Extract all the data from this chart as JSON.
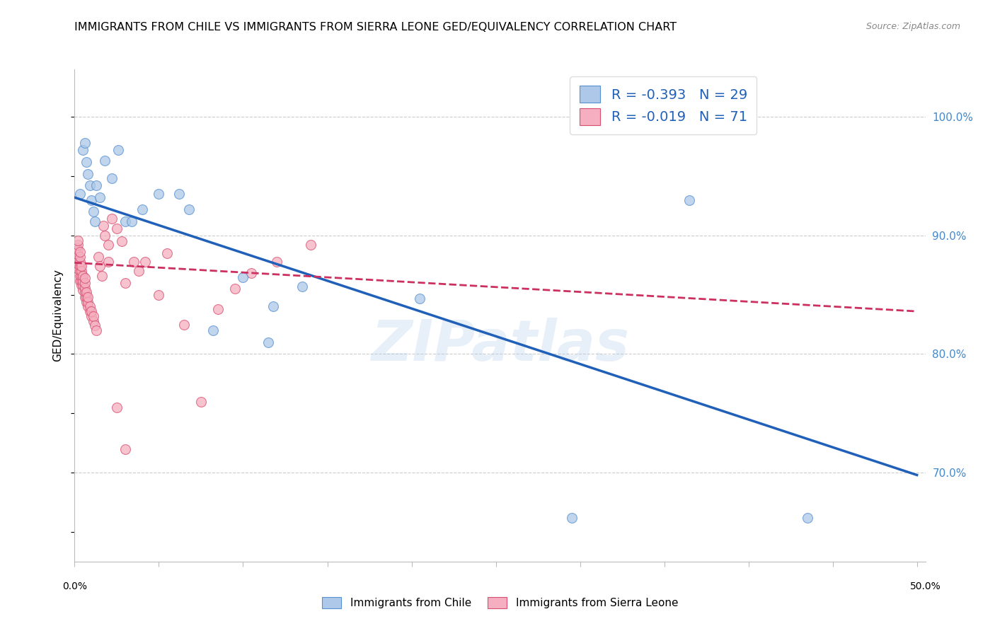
{
  "title": "IMMIGRANTS FROM CHILE VS IMMIGRANTS FROM SIERRA LEONE GED/EQUIVALENCY CORRELATION CHART",
  "source": "Source: ZipAtlas.com",
  "ylabel": "GED/Equivalency",
  "ytick_values": [
    0.7,
    0.8,
    0.9,
    1.0
  ],
  "xlim": [
    0.0,
    0.505
  ],
  "ylim": [
    0.625,
    1.04
  ],
  "chile_R": "-0.393",
  "chile_N": "29",
  "sierra_leone_R": "-0.019",
  "sierra_leone_N": "71",
  "chile_color": "#adc8e8",
  "sierra_leone_color": "#f5afc0",
  "chile_edge_color": "#5590d0",
  "sierra_leone_edge_color": "#d85070",
  "chile_line_color": "#2060b8",
  "sierra_leone_line_color": "#cc3060",
  "background_color": "#ffffff",
  "grid_color": "#cccccc",
  "title_fontsize": 11.5,
  "right_axis_color": "#4488cc",
  "legend_text_color": "#2060b8",
  "chile_scatter_x": [
    0.003,
    0.005,
    0.006,
    0.007,
    0.008,
    0.009,
    0.01,
    0.011,
    0.012,
    0.013,
    0.015,
    0.018,
    0.022,
    0.026,
    0.03,
    0.034,
    0.04,
    0.05,
    0.062,
    0.068,
    0.082,
    0.1,
    0.118,
    0.135,
    0.205,
    0.115,
    0.295,
    0.365,
    0.435
  ],
  "chile_scatter_y": [
    0.935,
    0.972,
    0.978,
    0.962,
    0.952,
    0.942,
    0.93,
    0.92,
    0.912,
    0.942,
    0.932,
    0.963,
    0.948,
    0.972,
    0.912,
    0.912,
    0.922,
    0.935,
    0.935,
    0.922,
    0.82,
    0.865,
    0.84,
    0.857,
    0.847,
    0.81,
    0.662,
    0.93,
    0.662
  ],
  "sl_scatter_x": [
    0.001,
    0.001,
    0.001,
    0.001,
    0.002,
    0.002,
    0.002,
    0.002,
    0.002,
    0.002,
    0.002,
    0.003,
    0.003,
    0.003,
    0.003,
    0.003,
    0.003,
    0.003,
    0.004,
    0.004,
    0.004,
    0.004,
    0.004,
    0.005,
    0.005,
    0.005,
    0.005,
    0.006,
    0.006,
    0.006,
    0.006,
    0.006,
    0.007,
    0.007,
    0.007,
    0.008,
    0.008,
    0.008,
    0.009,
    0.009,
    0.01,
    0.01,
    0.011,
    0.011,
    0.012,
    0.013,
    0.014,
    0.015,
    0.016,
    0.017,
    0.018,
    0.02,
    0.02,
    0.022,
    0.025,
    0.028,
    0.03,
    0.035,
    0.038,
    0.042,
    0.05,
    0.055,
    0.065,
    0.075,
    0.085,
    0.095,
    0.105,
    0.12,
    0.14,
    0.025,
    0.03
  ],
  "sl_scatter_y": [
    0.878,
    0.882,
    0.886,
    0.89,
    0.872,
    0.876,
    0.88,
    0.884,
    0.888,
    0.892,
    0.896,
    0.862,
    0.866,
    0.87,
    0.874,
    0.878,
    0.882,
    0.886,
    0.858,
    0.862,
    0.866,
    0.87,
    0.874,
    0.854,
    0.858,
    0.862,
    0.866,
    0.848,
    0.852,
    0.856,
    0.86,
    0.864,
    0.844,
    0.848,
    0.852,
    0.84,
    0.844,
    0.848,
    0.836,
    0.84,
    0.832,
    0.836,
    0.828,
    0.832,
    0.824,
    0.82,
    0.882,
    0.874,
    0.866,
    0.908,
    0.9,
    0.892,
    0.878,
    0.914,
    0.906,
    0.895,
    0.86,
    0.878,
    0.87,
    0.878,
    0.85,
    0.885,
    0.825,
    0.76,
    0.838,
    0.855,
    0.868,
    0.878,
    0.892,
    0.755,
    0.72
  ],
  "chile_trend_x0": 0.0,
  "chile_trend_y0": 0.932,
  "chile_trend_x1": 0.5,
  "chile_trend_y1": 0.698,
  "sl_trend_x0": 0.0,
  "sl_trend_y0": 0.877,
  "sl_trend_x1": 0.5,
  "sl_trend_y1": 0.836
}
